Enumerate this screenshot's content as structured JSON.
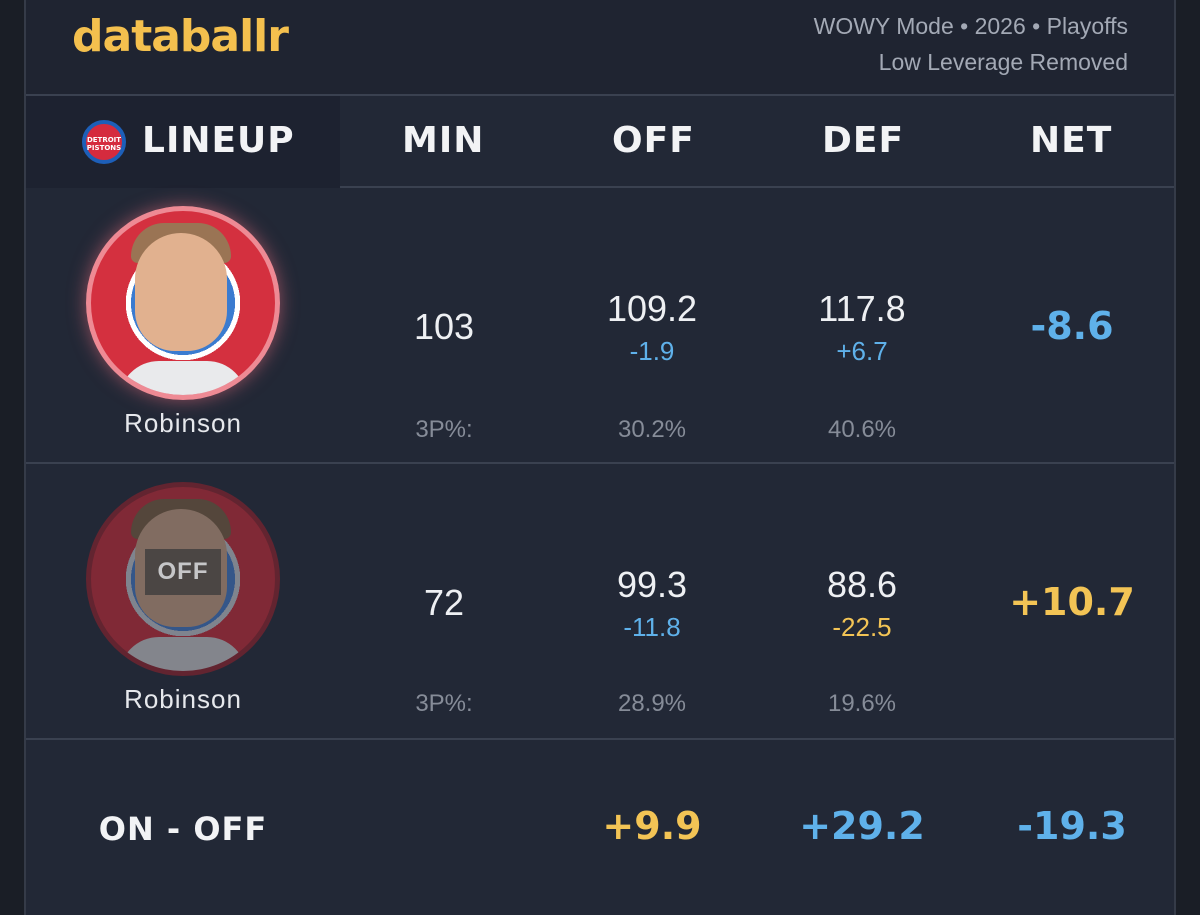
{
  "brand": {
    "name": "databallr"
  },
  "meta": {
    "line1": "WOWY Mode • 2026 • Playoffs",
    "line2": "Low Leverage Removed"
  },
  "header": {
    "lineup": "LINEUP",
    "min": "MIN",
    "off": "OFF",
    "def": "DEF",
    "net": "NET"
  },
  "team_logo_text": "DETROIT PISTONS",
  "rows": [
    {
      "player": "Robinson",
      "status": "on",
      "min": "103",
      "off": "109.2",
      "off_delta": "-1.9",
      "def": "117.8",
      "def_delta": "+6.7",
      "net": "-8.6",
      "tp_label": "3P%:",
      "off_3p": "30.2%",
      "def_3p": "40.6%"
    },
    {
      "player": "Robinson",
      "status": "off",
      "badge": "OFF",
      "min": "72",
      "off": "99.3",
      "off_delta": "-11.8",
      "def": "88.6",
      "def_delta": "-22.5",
      "net": "+10.7",
      "tp_label": "3P%:",
      "off_3p": "28.9%",
      "def_3p": "19.6%"
    }
  ],
  "on_off": {
    "label": "ON - OFF",
    "off": "+9.9",
    "def": "+29.2",
    "net": "-19.3"
  },
  "colors": {
    "positive": "#f3c455",
    "negative": "#5fb1ea",
    "brand": "#f4c04e"
  }
}
